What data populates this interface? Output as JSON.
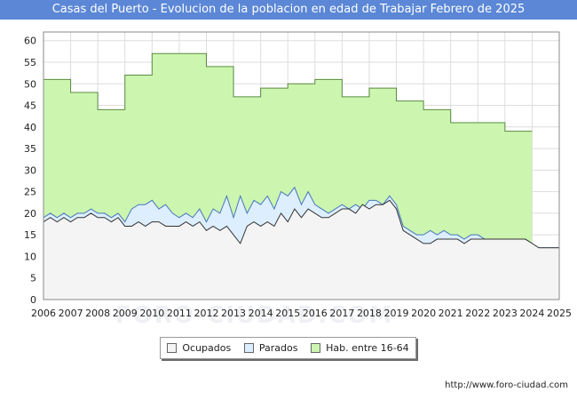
{
  "chart_data": {
    "type": "area",
    "title": "Casas del Puerto - Evolucion de la poblacion en edad de Trabajar Febrero de 2025",
    "xlabel": "",
    "ylabel": "",
    "xlim": [
      2006,
      2025
    ],
    "ylim": [
      0,
      62
    ],
    "x_ticks": [
      "2006",
      "2007",
      "2008",
      "2009",
      "2010",
      "2011",
      "2012",
      "2013",
      "2014",
      "2015",
      "2016",
      "2017",
      "2018",
      "2019",
      "2020",
      "2021",
      "2022",
      "2023",
      "2024",
      "2025"
    ],
    "y_ticks": [
      0,
      5,
      10,
      15,
      20,
      25,
      30,
      35,
      40,
      45,
      50,
      55,
      60
    ],
    "grid": true,
    "legend_position": "bottom",
    "series": [
      {
        "name": "Hab. entre 16-64",
        "color": "#ccf5b0",
        "line_color": "#5a8a40",
        "step_x": [
          2006,
          2007,
          2008,
          2009,
          2010,
          2011,
          2012,
          2013,
          2014,
          2015,
          2016,
          2017,
          2018,
          2019,
          2020,
          2021,
          2022,
          2023,
          2024
        ],
        "values": [
          51,
          48,
          44,
          52,
          57,
          57,
          54,
          47,
          49,
          50,
          51,
          47,
          49,
          46,
          44,
          41,
          41,
          39,
          null
        ]
      },
      {
        "name": "Parados",
        "color": "#ddeeff",
        "line_color": "#4477bb",
        "x": [
          2006.0,
          2006.25,
          2006.5,
          2006.75,
          2007.0,
          2007.25,
          2007.5,
          2007.75,
          2008.0,
          2008.25,
          2008.5,
          2008.75,
          2009.0,
          2009.25,
          2009.5,
          2009.75,
          2010.0,
          2010.25,
          2010.5,
          2010.75,
          2011.0,
          2011.25,
          2011.5,
          2011.75,
          2012.0,
          2012.25,
          2012.5,
          2012.75,
          2013.0,
          2013.25,
          2013.5,
          2013.75,
          2014.0,
          2014.25,
          2014.5,
          2014.75,
          2015.0,
          2015.25,
          2015.5,
          2015.75,
          2016.0,
          2016.25,
          2016.5,
          2016.75,
          2017.0,
          2017.25,
          2017.5,
          2017.75,
          2018.0,
          2018.25,
          2018.5,
          2018.75,
          2019.0,
          2019.25,
          2019.5,
          2019.75,
          2020.0,
          2020.25,
          2020.5,
          2020.75,
          2021.0,
          2021.25,
          2021.5,
          2021.75,
          2022.0,
          2022.25,
          2022.5,
          2022.75,
          2023.0,
          2023.25,
          2023.5,
          2023.75,
          2024.0,
          2024.25,
          2024.5,
          2024.75,
          2025.0
        ],
        "values": [
          19,
          20,
          19,
          20,
          19,
          20,
          20,
          21,
          20,
          20,
          19,
          20,
          18,
          21,
          22,
          22,
          23,
          21,
          22,
          20,
          19,
          20,
          19,
          21,
          18,
          21,
          20,
          24,
          19,
          24,
          20,
          23,
          22,
          24,
          21,
          25,
          24,
          26,
          22,
          25,
          22,
          21,
          20,
          21,
          22,
          21,
          22,
          21,
          23,
          23,
          22,
          24,
          22,
          17,
          16,
          15,
          15,
          16,
          15,
          16,
          15,
          15,
          14,
          15,
          15,
          14,
          14,
          14,
          14,
          14,
          14,
          14,
          13,
          12,
          12,
          12,
          12
        ]
      },
      {
        "name": "Ocupados",
        "color": "#f4f4f4",
        "line_color": "#333333",
        "x": [
          2006.0,
          2006.25,
          2006.5,
          2006.75,
          2007.0,
          2007.25,
          2007.5,
          2007.75,
          2008.0,
          2008.25,
          2008.5,
          2008.75,
          2009.0,
          2009.25,
          2009.5,
          2009.75,
          2010.0,
          2010.25,
          2010.5,
          2010.75,
          2011.0,
          2011.25,
          2011.5,
          2011.75,
          2012.0,
          2012.25,
          2012.5,
          2012.75,
          2013.0,
          2013.25,
          2013.5,
          2013.75,
          2014.0,
          2014.25,
          2014.5,
          2014.75,
          2015.0,
          2015.25,
          2015.5,
          2015.75,
          2016.0,
          2016.25,
          2016.5,
          2016.75,
          2017.0,
          2017.25,
          2017.5,
          2017.75,
          2018.0,
          2018.25,
          2018.5,
          2018.75,
          2019.0,
          2019.25,
          2019.5,
          2019.75,
          2020.0,
          2020.25,
          2020.5,
          2020.75,
          2021.0,
          2021.25,
          2021.5,
          2021.75,
          2022.0,
          2022.25,
          2022.5,
          2022.75,
          2023.0,
          2023.25,
          2023.5,
          2023.75,
          2024.0,
          2024.25,
          2024.5,
          2024.75,
          2025.0
        ],
        "values": [
          18,
          19,
          18,
          19,
          18,
          19,
          19,
          20,
          19,
          19,
          18,
          19,
          17,
          17,
          18,
          17,
          18,
          18,
          17,
          17,
          17,
          18,
          17,
          18,
          16,
          17,
          16,
          17,
          15,
          13,
          17,
          18,
          17,
          18,
          17,
          20,
          18,
          21,
          19,
          21,
          20,
          19,
          19,
          20,
          21,
          21,
          20,
          22,
          21,
          22,
          22,
          23,
          21,
          16,
          15,
          14,
          13,
          13,
          14,
          14,
          14,
          14,
          13,
          14,
          14,
          14,
          14,
          14,
          14,
          14,
          14,
          14,
          13,
          12,
          12,
          12,
          12
        ]
      }
    ]
  },
  "legend": {
    "items": [
      "Ocupados",
      "Parados",
      "Hab. entre 16-64"
    ]
  },
  "footer": {
    "url": "http://www.foro-ciudad.com"
  },
  "watermark": {
    "text": "FORO-CIUDAD.COM"
  }
}
